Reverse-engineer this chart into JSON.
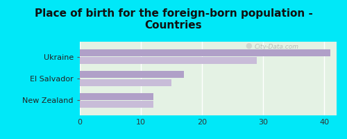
{
  "title": "Place of birth for the foreign-born population -\nCountries",
  "categories": [
    "New Zealand",
    "El Salvador",
    "Ukraine"
  ],
  "bar1_values": [
    12,
    17,
    41
  ],
  "bar2_values": [
    12,
    15,
    29
  ],
  "bar_color1": "#b0a0c8",
  "bar_color2": "#c8bcd8",
  "background_outer": "#00e8f8",
  "background_inner": "#e4f2e4",
  "xlim": [
    0,
    42
  ],
  "xticks": [
    0,
    10,
    20,
    30,
    40
  ],
  "bar_height": 0.32,
  "bar_gap": 0.04,
  "title_fontsize": 11,
  "tick_fontsize": 8,
  "label_fontsize": 8
}
